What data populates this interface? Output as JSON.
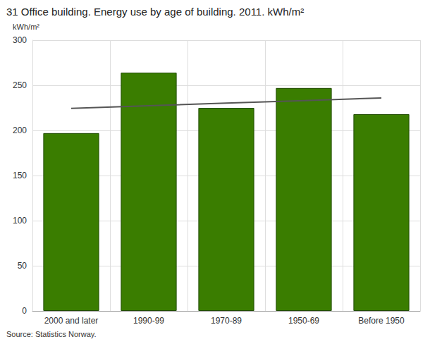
{
  "chart_data": {
    "type": "bar",
    "title": "31 Office building. Energy use by age of building. 2011. kWh/m²",
    "y_label": "kWh/m²",
    "source": "Source: Statistics Norway.",
    "categories": [
      "2000 and later",
      "1990-99",
      "1970-89",
      "1950-69",
      "Before 1950"
    ],
    "series": [
      {
        "type": "bar",
        "color": "#3a7d00",
        "values": [
          197,
          264,
          225,
          247,
          218
        ]
      },
      {
        "type": "line",
        "color": "#555555",
        "values": [
          224.5,
          227.4,
          230.2,
          233.1,
          236
        ]
      }
    ],
    "ylim": [
      0,
      300
    ],
    "yticks": [
      0,
      50,
      100,
      150,
      200,
      250,
      300
    ],
    "grid": true
  }
}
